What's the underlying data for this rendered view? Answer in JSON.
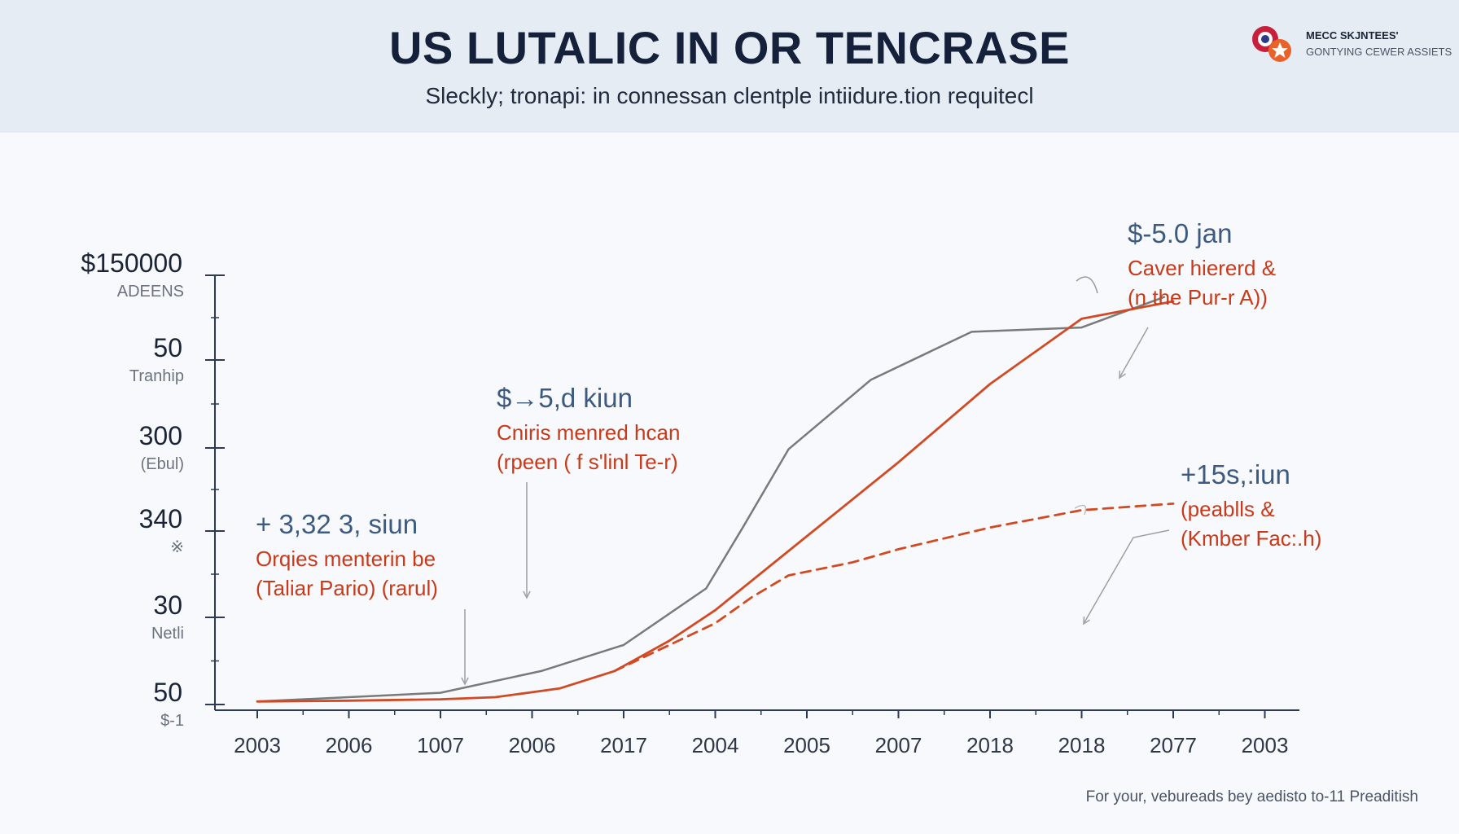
{
  "header": {
    "title": "US LUTALIC IN OR TENCRASE",
    "subtitle": "Sleckly; tronapi: in connessan clentple intiidure.tion requitecl"
  },
  "logo": {
    "icon": "overlapping-circles-star-logo",
    "name": "MECC SKJNTEES'",
    "tagline": "GONTYING CEWER ASSIETS"
  },
  "footnote": "For your, vebureads bey aedisto to-11 Preaditish",
  "colors": {
    "background": "#f7f9fc",
    "header_band": "#e6ecf3",
    "axis": "#2b3a55",
    "series_gray": "#7a7a7a",
    "series_red": "#d24a24",
    "annotation_value": "#3d5a80",
    "annotation_text": "#c83a1a"
  },
  "chart_data": {
    "type": "line",
    "categories": [
      "2003",
      "2006",
      "1007",
      "2006",
      "2017",
      "2004",
      "2005",
      "2007",
      "2018",
      "2018",
      "2077",
      "2003"
    ],
    "y_tick_labels": [
      {
        "value": "$150000",
        "sub": "ADEENS"
      },
      {
        "value": "50",
        "sub": "Tranhip"
      },
      {
        "value": "300",
        "sub": "(Ebul)"
      },
      {
        "value": "340",
        "sub": "※"
      },
      {
        "value": "30",
        "sub": "Netli"
      },
      {
        "value": "50",
        "sub": "$-1"
      }
    ],
    "ylim": [
      0,
      100
    ],
    "grid": false,
    "series": [
      {
        "style": "solid",
        "color": "#7a7a7a",
        "points": [
          [
            0,
            2
          ],
          [
            2,
            4
          ],
          [
            3.1,
            9
          ],
          [
            4,
            15
          ],
          [
            4.9,
            28
          ],
          [
            5.3,
            42
          ],
          [
            5.8,
            60
          ],
          [
            6.7,
            76
          ],
          [
            7.8,
            87
          ],
          [
            9.0,
            88
          ],
          [
            9.9,
            95
          ]
        ]
      },
      {
        "style": "solid",
        "color": "#d24a24",
        "points": [
          [
            0,
            2
          ],
          [
            1,
            2.2
          ],
          [
            2,
            2.5
          ],
          [
            2.6,
            3
          ],
          [
            3.3,
            5
          ],
          [
            3.9,
            9
          ],
          [
            4.5,
            16
          ],
          [
            5,
            23
          ],
          [
            6,
            40
          ],
          [
            7,
            57
          ],
          [
            8,
            75
          ],
          [
            9,
            90
          ],
          [
            10,
            94
          ]
        ]
      },
      {
        "style": "dashed",
        "color": "#d24a24",
        "points": [
          [
            3.9,
            9
          ],
          [
            4.5,
            15
          ],
          [
            5,
            20
          ],
          [
            5.4,
            26
          ],
          [
            5.8,
            31
          ],
          [
            6.5,
            34
          ],
          [
            7,
            37
          ],
          [
            8,
            42
          ],
          [
            9,
            46
          ],
          [
            10,
            47.5
          ]
        ]
      }
    ],
    "annotations": [
      {
        "value": "+ 3,32 3, siun",
        "line1": "Orqies menterin be",
        "line2": "(Taliar Pario) (rarul)"
      },
      {
        "value": "$→5,d kiun",
        "line1": "Cniris menred hcan",
        "line2": "(rpeen ( f s'linl Te-r)"
      },
      {
        "value": "$-5.0 jan",
        "line1": "Caver hiererd &",
        "line2": "(n the Pur-r A))"
      },
      {
        "value": "+15s,:iun",
        "line1": "(peablls &",
        "line2": "(Kmber Fac:.h)"
      }
    ]
  }
}
